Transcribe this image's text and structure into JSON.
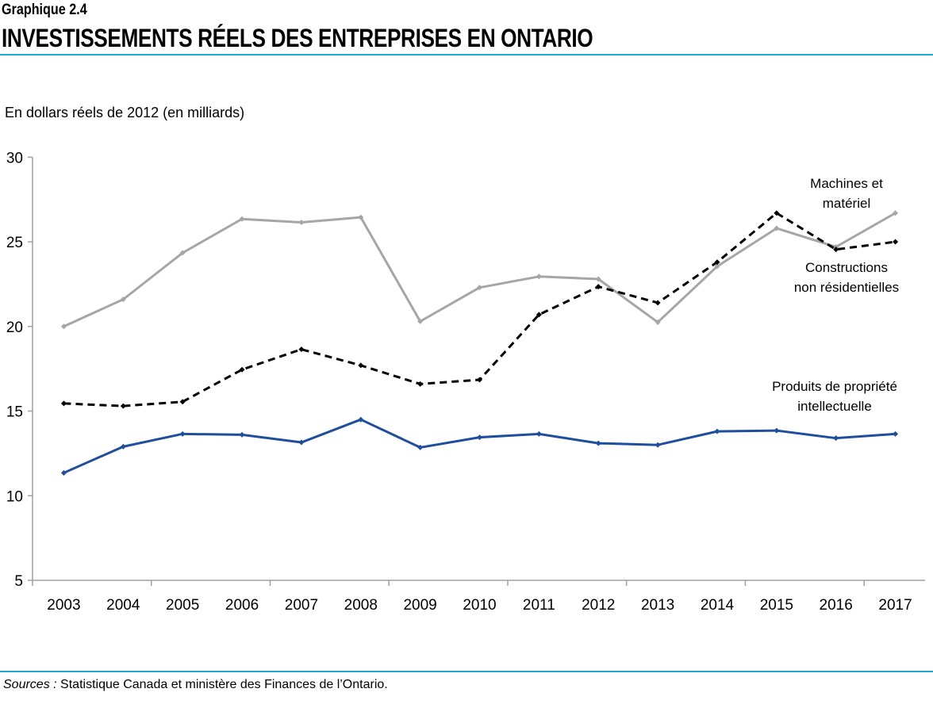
{
  "header": {
    "subtitle": "Graphique 2.4",
    "title": "INVESTISSEMENTS RÉELS DES ENTREPRISES EN ONTARIO"
  },
  "footer": {
    "sources_label": "Sources :",
    "sources_text": "Statistique Canada et ministère des Finances de l’Ontario."
  },
  "chart_data": {
    "type": "line",
    "title": "INVESTISSEMENTS RÉELS DES ENTREPRISES EN ONTARIO",
    "ylabel": "En dollars réels de 2012 (en milliards)",
    "xlabel": "",
    "ylim": [
      5,
      30
    ],
    "yticks": [
      5,
      10,
      15,
      20,
      25,
      30
    ],
    "grid": false,
    "legend": "inline labels at right",
    "categories": [
      "2003",
      "2004",
      "2005",
      "2006",
      "2007",
      "2008",
      "2009",
      "2010",
      "2011",
      "2012",
      "2013",
      "2014",
      "2015",
      "2016",
      "2017"
    ],
    "series": [
      {
        "name": "Machines et matériel",
        "label_lines": [
          "Machines et",
          "matériel"
        ],
        "color": "#a6a6a6",
        "style": "solid",
        "values": [
          20.0,
          21.6,
          24.35,
          26.35,
          26.15,
          26.45,
          20.3,
          22.3,
          22.95,
          22.8,
          20.25,
          23.55,
          25.8,
          24.7,
          26.7
        ]
      },
      {
        "name": "Constructions non résidentielles",
        "label_lines": [
          "Constructions",
          "non résidentielles"
        ],
        "color": "#000000",
        "style": "dashed",
        "values": [
          15.45,
          15.3,
          15.55,
          17.45,
          18.65,
          17.7,
          16.6,
          16.85,
          20.7,
          22.35,
          21.4,
          23.8,
          26.7,
          24.55,
          25.0
        ]
      },
      {
        "name": "Produits de propriété intellectuelle",
        "label_lines": [
          "Produits de propriété",
          "intellectuelle"
        ],
        "color": "#1f4e9c",
        "style": "solid",
        "values": [
          11.35,
          12.9,
          13.65,
          13.6,
          13.15,
          14.5,
          12.85,
          13.45,
          13.65,
          13.1,
          13.0,
          13.8,
          13.85,
          13.4,
          13.65
        ]
      }
    ]
  }
}
